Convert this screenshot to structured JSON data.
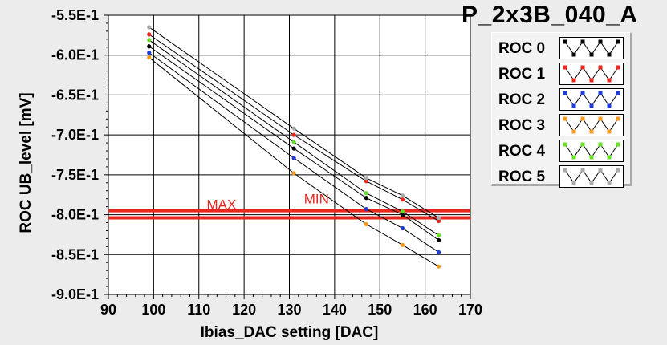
{
  "chart_data": {
    "type": "line",
    "title": "P_2x3B_040_A",
    "xlabel": "Ibias_DAC setting [DAC]",
    "ylabel": "ROC UB_level [mV]",
    "xlim": [
      90,
      170
    ],
    "ylim": [
      -0.9,
      -0.55
    ],
    "x_ticks": [
      90,
      100,
      110,
      120,
      130,
      140,
      150,
      160,
      170
    ],
    "x_tick_labels": [
      "90",
      "100",
      "110",
      "120",
      "130",
      "140",
      "150",
      "160",
      "170"
    ],
    "y_ticks": [
      -0.55,
      -0.6,
      -0.65,
      -0.7,
      -0.75,
      -0.8,
      -0.85,
      -0.9
    ],
    "y_tick_labels": [
      "-5.5E-1",
      "-6.0E-1",
      "-6.5E-1",
      "-7.0E-1",
      "-7.5E-1",
      "-8.0E-1",
      "-8.5E-1",
      "-9.0E-1"
    ],
    "grid": true,
    "legend": "right",
    "series": [
      {
        "name": "ROC 0",
        "color": "#000000",
        "x": [
          99,
          131,
          147,
          155,
          163
        ],
        "y": [
          -0.589,
          -0.717,
          -0.779,
          -0.8,
          -0.832
        ]
      },
      {
        "name": "ROC 1",
        "color": "#e8261c",
        "x": [
          99,
          131,
          147,
          155,
          163
        ],
        "y": [
          -0.574,
          -0.7,
          -0.758,
          -0.781,
          -0.808
        ]
      },
      {
        "name": "ROC 2",
        "color": "#1f3cd6",
        "x": [
          99,
          131,
          147,
          155,
          163
        ],
        "y": [
          -0.597,
          -0.729,
          -0.793,
          -0.817,
          -0.847
        ]
      },
      {
        "name": "ROC 3",
        "color": "#f59a1f",
        "x": [
          99,
          131,
          147,
          155,
          163
        ],
        "y": [
          -0.603,
          -0.748,
          -0.812,
          -0.838,
          -0.865
        ]
      },
      {
        "name": "ROC 4",
        "color": "#66e024",
        "x": [
          99,
          131,
          147,
          155,
          163
        ],
        "y": [
          -0.581,
          -0.709,
          -0.773,
          -0.796,
          -0.826
        ]
      },
      {
        "name": "ROC 5",
        "color": "#aaaaaa",
        "x": [
          99,
          131,
          147,
          155,
          163
        ],
        "y": [
          -0.565,
          -0.692,
          -0.754,
          -0.776,
          -0.804
        ]
      }
    ],
    "limits": [
      {
        "label": "MAX",
        "value": -0.795,
        "color": "#e8261c"
      },
      {
        "label": "MIN",
        "value": -0.804,
        "color": "#e8261c"
      }
    ],
    "limit_text_color": "#e8261c",
    "limit_label_x": {
      "MAX": 115,
      "MIN": 136
    }
  }
}
